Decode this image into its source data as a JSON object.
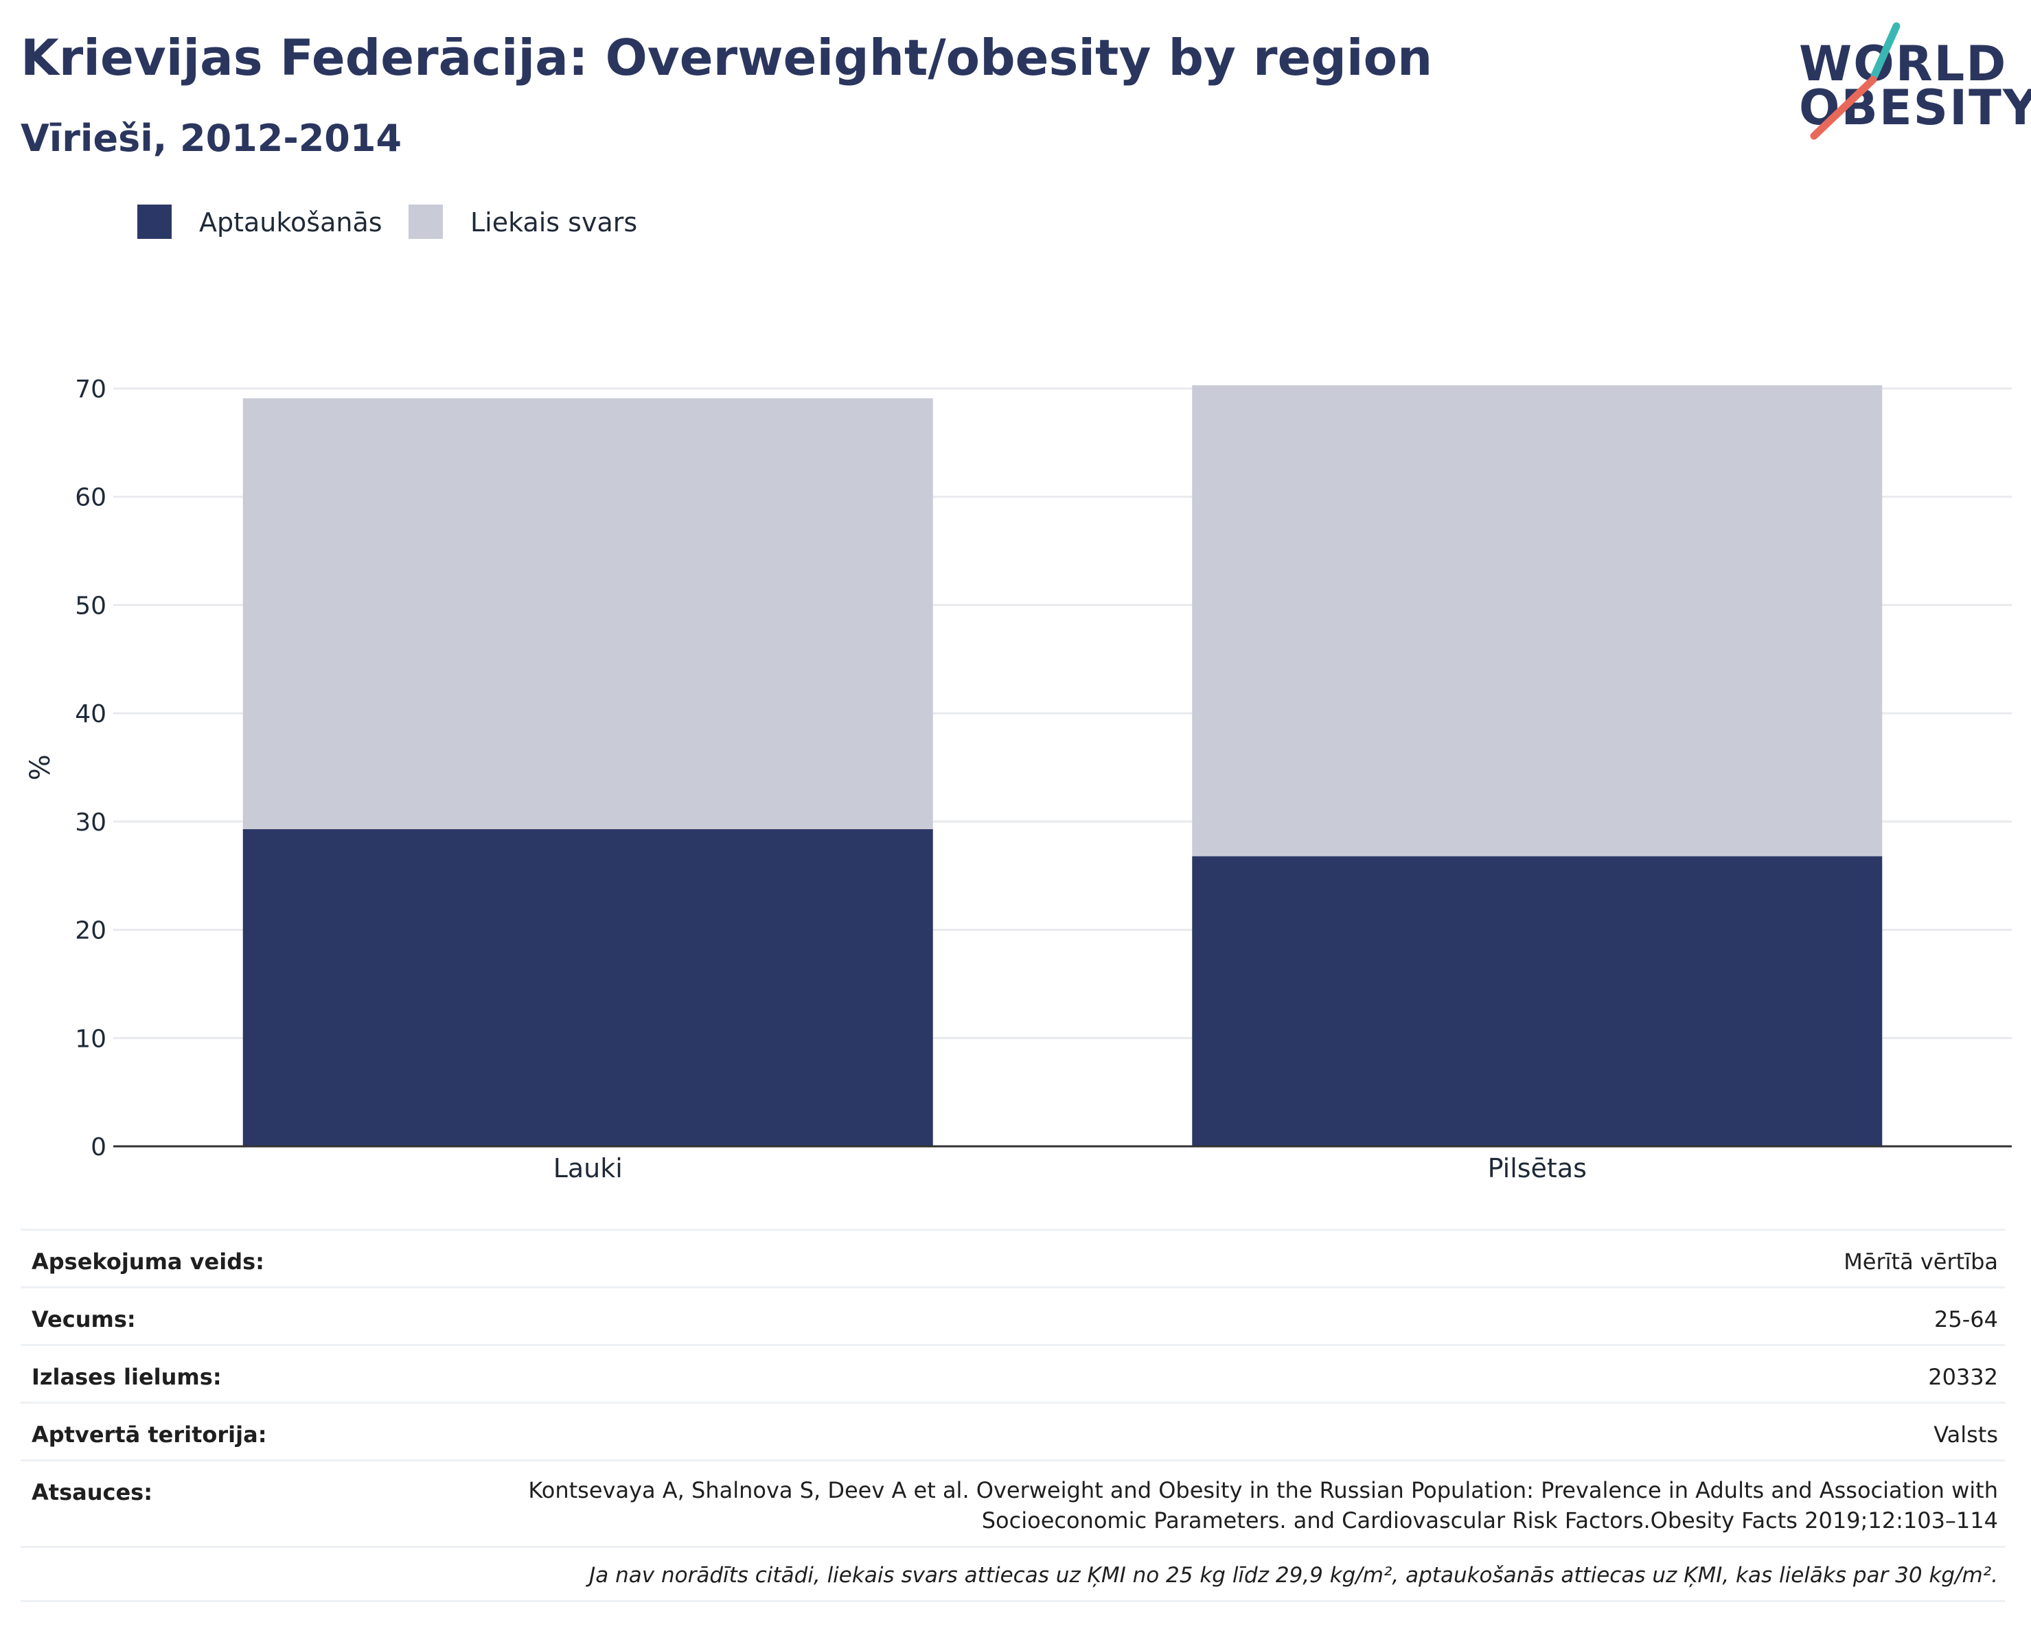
{
  "header": {
    "title": "Krievijas Federācija: Overweight/obesity by region",
    "subtitle": "Vīrieši, 2012-2014"
  },
  "logo": {
    "line1": "WORLD",
    "line2": "OBESITY"
  },
  "colors": {
    "obesity": "#2b3765",
    "overweight": "#c9cbd6",
    "title": "#2b365f",
    "grid": "#e8eaee",
    "axis": "#333333",
    "logo_teal": "#3ab7b3",
    "logo_coral": "#e8695a"
  },
  "chart_data": {
    "type": "bar",
    "stacked": true,
    "categories": [
      "Lauki",
      "Pilsētas"
    ],
    "series": [
      {
        "name": "Aptaukošanās",
        "values": [
          29.3,
          26.8
        ]
      },
      {
        "name": "Liekais svars",
        "values": [
          39.8,
          43.5
        ]
      }
    ],
    "ylabel": "%",
    "ylim": [
      0,
      70
    ],
    "yticks": [
      0,
      10,
      20,
      30,
      40,
      50,
      60,
      70
    ],
    "grid": true,
    "legend": "top-left"
  },
  "info": {
    "survey_type_label": "Apsekojuma veids:",
    "survey_type_value": "Mērītā vērtība",
    "age_label": "Vecums:",
    "age_value": "25-64",
    "sample_label": "Izlases lielums:",
    "sample_value": "20332",
    "coverage_label": "Aptvertā teritorija:",
    "coverage_value": "Valsts",
    "references_label": "Atsauces:",
    "references_value": "Kontsevaya A, Shalnova S, Deev A et al. Overweight and Obesity in the Russian Population: Prevalence in Adults and Association with Socioeconomic Parameters. and Cardiovascular Risk Factors.Obesity Facts 2019;12:103–114",
    "note": "Ja nav norādīts citādi, liekais svars attiecas uz ĶMI no 25 kg līdz 29,9 kg/m², aptaukošanās attiecas uz ĶMI, kas lielāks par 30 kg/m²."
  }
}
